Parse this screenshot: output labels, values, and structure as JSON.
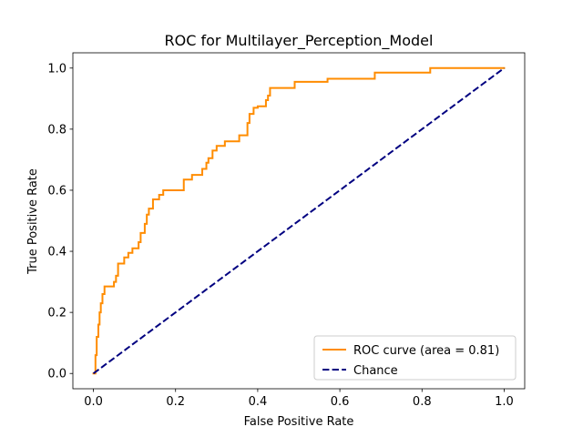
{
  "chart_data": {
    "type": "line",
    "title": "ROC for Multilayer_Perception_Model",
    "xlabel": "False Positive Rate",
    "ylabel": "True Positive Rate",
    "xlim": [
      -0.05,
      1.05
    ],
    "ylim": [
      -0.05,
      1.05
    ],
    "xticks": [
      0.0,
      0.2,
      0.4,
      0.6,
      0.8,
      1.0
    ],
    "yticks": [
      0.0,
      0.2,
      0.4,
      0.6,
      0.8,
      1.0
    ],
    "xtick_labels": [
      "0.0",
      "0.2",
      "0.4",
      "0.6",
      "0.8",
      "1.0"
    ],
    "ytick_labels": [
      "0.0",
      "0.2",
      "0.4",
      "0.6",
      "0.8",
      "1.0"
    ],
    "grid": false,
    "legend_position": "lower-right",
    "series": [
      {
        "name": "ROC curve (area = 0.81)",
        "color": "#ff8c00",
        "style": "solid",
        "x": [
          0.0,
          0.005,
          0.005,
          0.008,
          0.008,
          0.012,
          0.012,
          0.015,
          0.015,
          0.018,
          0.018,
          0.022,
          0.022,
          0.027,
          0.027,
          0.03,
          0.03,
          0.032,
          0.032,
          0.05,
          0.05,
          0.055,
          0.055,
          0.06,
          0.06,
          0.075,
          0.075,
          0.085,
          0.085,
          0.095,
          0.095,
          0.11,
          0.11,
          0.115,
          0.115,
          0.125,
          0.125,
          0.13,
          0.13,
          0.135,
          0.135,
          0.145,
          0.145,
          0.16,
          0.16,
          0.17,
          0.17,
          0.22,
          0.22,
          0.24,
          0.24,
          0.265,
          0.265,
          0.275,
          0.275,
          0.28,
          0.28,
          0.29,
          0.29,
          0.3,
          0.3,
          0.32,
          0.32,
          0.355,
          0.355,
          0.375,
          0.375,
          0.38,
          0.38,
          0.39,
          0.39,
          0.4,
          0.4,
          0.42,
          0.42,
          0.425,
          0.425,
          0.43,
          0.43,
          0.49,
          0.49,
          0.57,
          0.57,
          0.685,
          0.685,
          0.82,
          0.82,
          1.0
        ],
        "y": [
          0.0,
          0.0,
          0.06,
          0.06,
          0.12,
          0.12,
          0.16,
          0.16,
          0.2,
          0.2,
          0.23,
          0.23,
          0.26,
          0.26,
          0.285,
          0.285,
          0.285,
          0.285,
          0.285,
          0.285,
          0.3,
          0.3,
          0.32,
          0.32,
          0.36,
          0.36,
          0.38,
          0.38,
          0.395,
          0.395,
          0.41,
          0.41,
          0.43,
          0.43,
          0.46,
          0.46,
          0.49,
          0.49,
          0.52,
          0.52,
          0.54,
          0.54,
          0.57,
          0.57,
          0.585,
          0.585,
          0.6,
          0.6,
          0.635,
          0.635,
          0.65,
          0.65,
          0.67,
          0.67,
          0.69,
          0.69,
          0.705,
          0.705,
          0.73,
          0.73,
          0.745,
          0.745,
          0.76,
          0.76,
          0.78,
          0.78,
          0.82,
          0.82,
          0.85,
          0.85,
          0.87,
          0.87,
          0.875,
          0.875,
          0.895,
          0.895,
          0.91,
          0.91,
          0.935,
          0.935,
          0.955,
          0.955,
          0.965,
          0.965,
          0.985,
          0.985,
          1.0,
          1.0
        ]
      },
      {
        "name": "Chance",
        "color": "#000080",
        "style": "dashed",
        "x": [
          0.0,
          1.0
        ],
        "y": [
          0.0,
          1.0
        ]
      }
    ]
  }
}
